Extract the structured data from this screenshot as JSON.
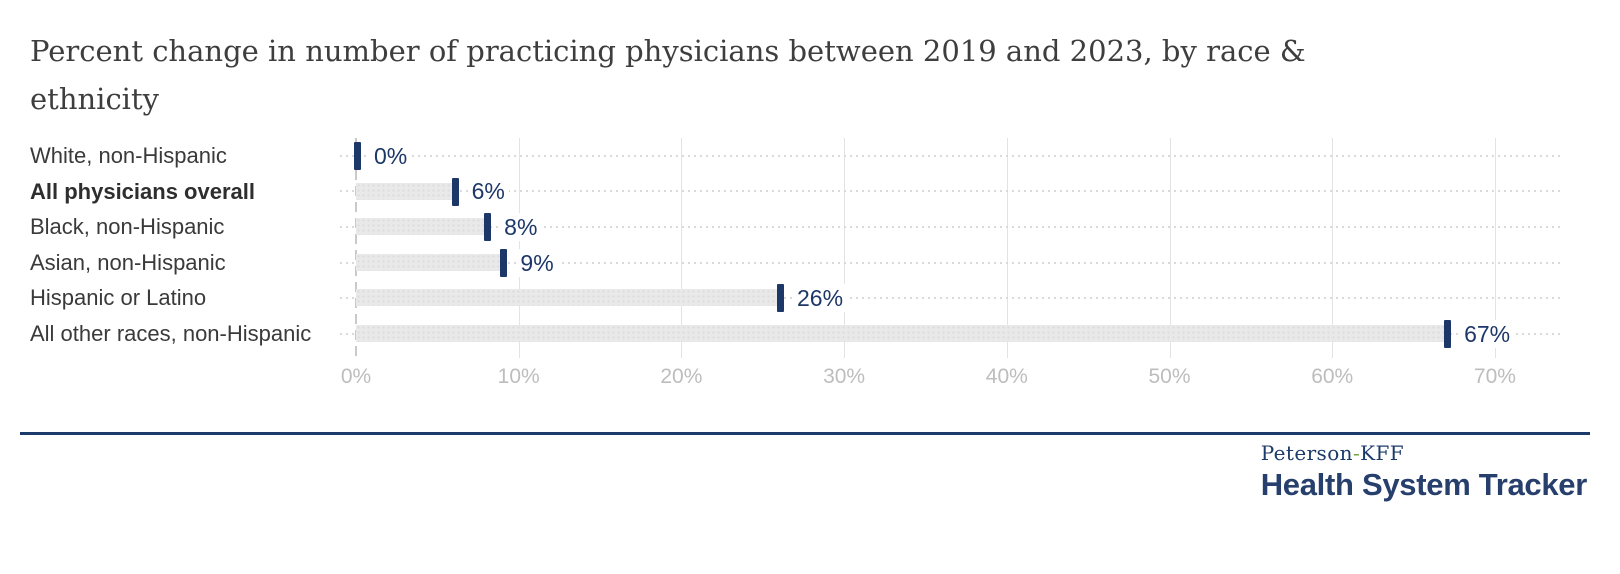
{
  "title": {
    "line1": "Percent change in number of practicing physicians between 2019 and 2023, by race &",
    "line2": "ethnicity"
  },
  "chart_data": {
    "type": "bar",
    "orientation": "horizontal",
    "title": "Percent change in number of practicing physicians between 2019 and 2023, by race & ethnicity",
    "categories": [
      "White, non-Hispanic",
      "All physicians overall",
      "Black, non-Hispanic",
      "Asian, non-Hispanic",
      "Hispanic or Latino",
      "All other races, non-Hispanic"
    ],
    "values": [
      0,
      6,
      8,
      9,
      26,
      67
    ],
    "value_labels": [
      "0%",
      "6%",
      "8%",
      "9%",
      "26%",
      "67%"
    ],
    "emphasized_category": "All physicians overall",
    "x_ticks": [
      "0%",
      "10%",
      "20%",
      "30%",
      "40%",
      "50%",
      "60%",
      "70%"
    ],
    "x_tick_values": [
      0,
      10,
      20,
      30,
      40,
      50,
      60,
      70
    ],
    "xlim": [
      0,
      74
    ],
    "xlabel": "",
    "ylabel": "",
    "grid": "vertical",
    "legend": "none",
    "colors": {
      "bar_fill": "#e9e9e9",
      "bar_dot_texture": "#dcdcdc",
      "value_marker": "#1c3768",
      "value_text": "#1c3768",
      "gridline": "#e3e3e3",
      "zero_dashed_line": "#c9c9c9",
      "axis_tick_text": "#bdbdbd",
      "category_text": "#3a3a3a"
    }
  },
  "footer": {
    "brand_line1_left": "Peterson",
    "brand_line1_hyphen": "-",
    "brand_line1_right": "KFF",
    "brand_line2": "Health System Tracker",
    "rule_color": "#1c3a6a",
    "hyphen_color": "#71a33f"
  }
}
